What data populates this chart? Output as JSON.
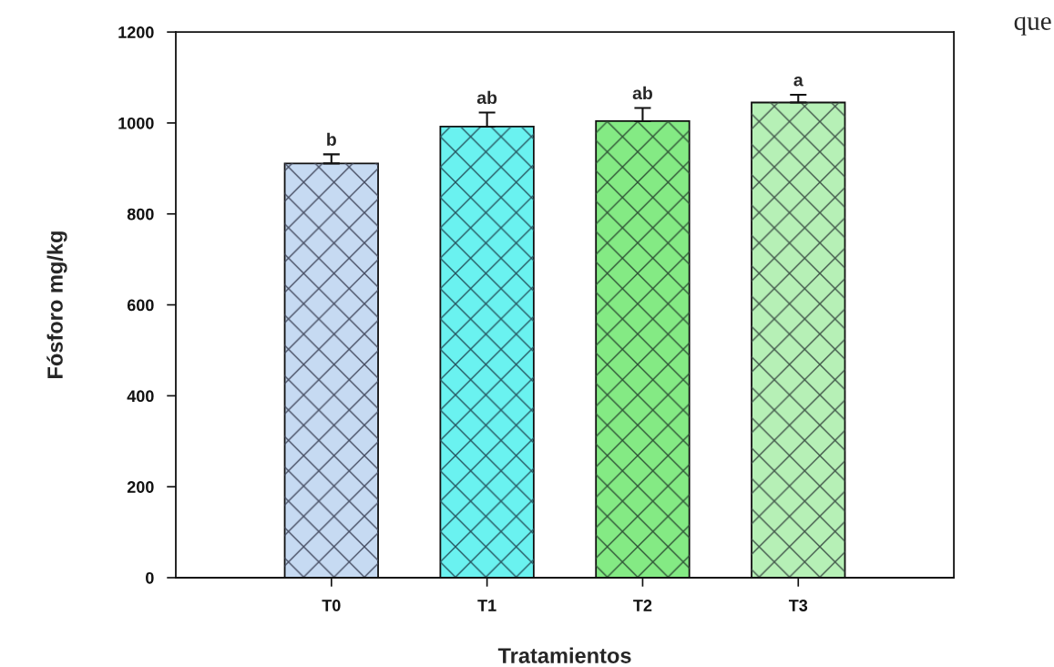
{
  "chart_data": {
    "type": "bar",
    "xlabel": "Tratamientos",
    "ylabel": "Fósforo mg/kg",
    "categories": [
      "T0",
      "T1",
      "T2",
      "T3"
    ],
    "values": [
      911,
      992,
      1004,
      1045
    ],
    "colors": [
      "#c6daf2",
      "#6af2f0",
      "#84ea84",
      "#b6f0b6"
    ],
    "errors": [
      [
        911,
        931
      ],
      [
        992,
        1023
      ],
      [
        1004,
        1033
      ],
      [
        1045,
        1062
      ]
    ],
    "ylim": [
      0,
      1200
    ],
    "yticks": [
      0,
      200,
      400,
      600,
      800,
      1000,
      1200
    ],
    "grid": false,
    "legend": false,
    "annotations": [
      {
        "text": "b",
        "x": "T0",
        "y": 931
      },
      {
        "text": "ab",
        "x": "T1",
        "y": 1023
      },
      {
        "text": "ab",
        "x": "T2",
        "y": 1033
      },
      {
        "text": "a",
        "x": "T3",
        "y": 1062
      },
      "que"
    ]
  }
}
